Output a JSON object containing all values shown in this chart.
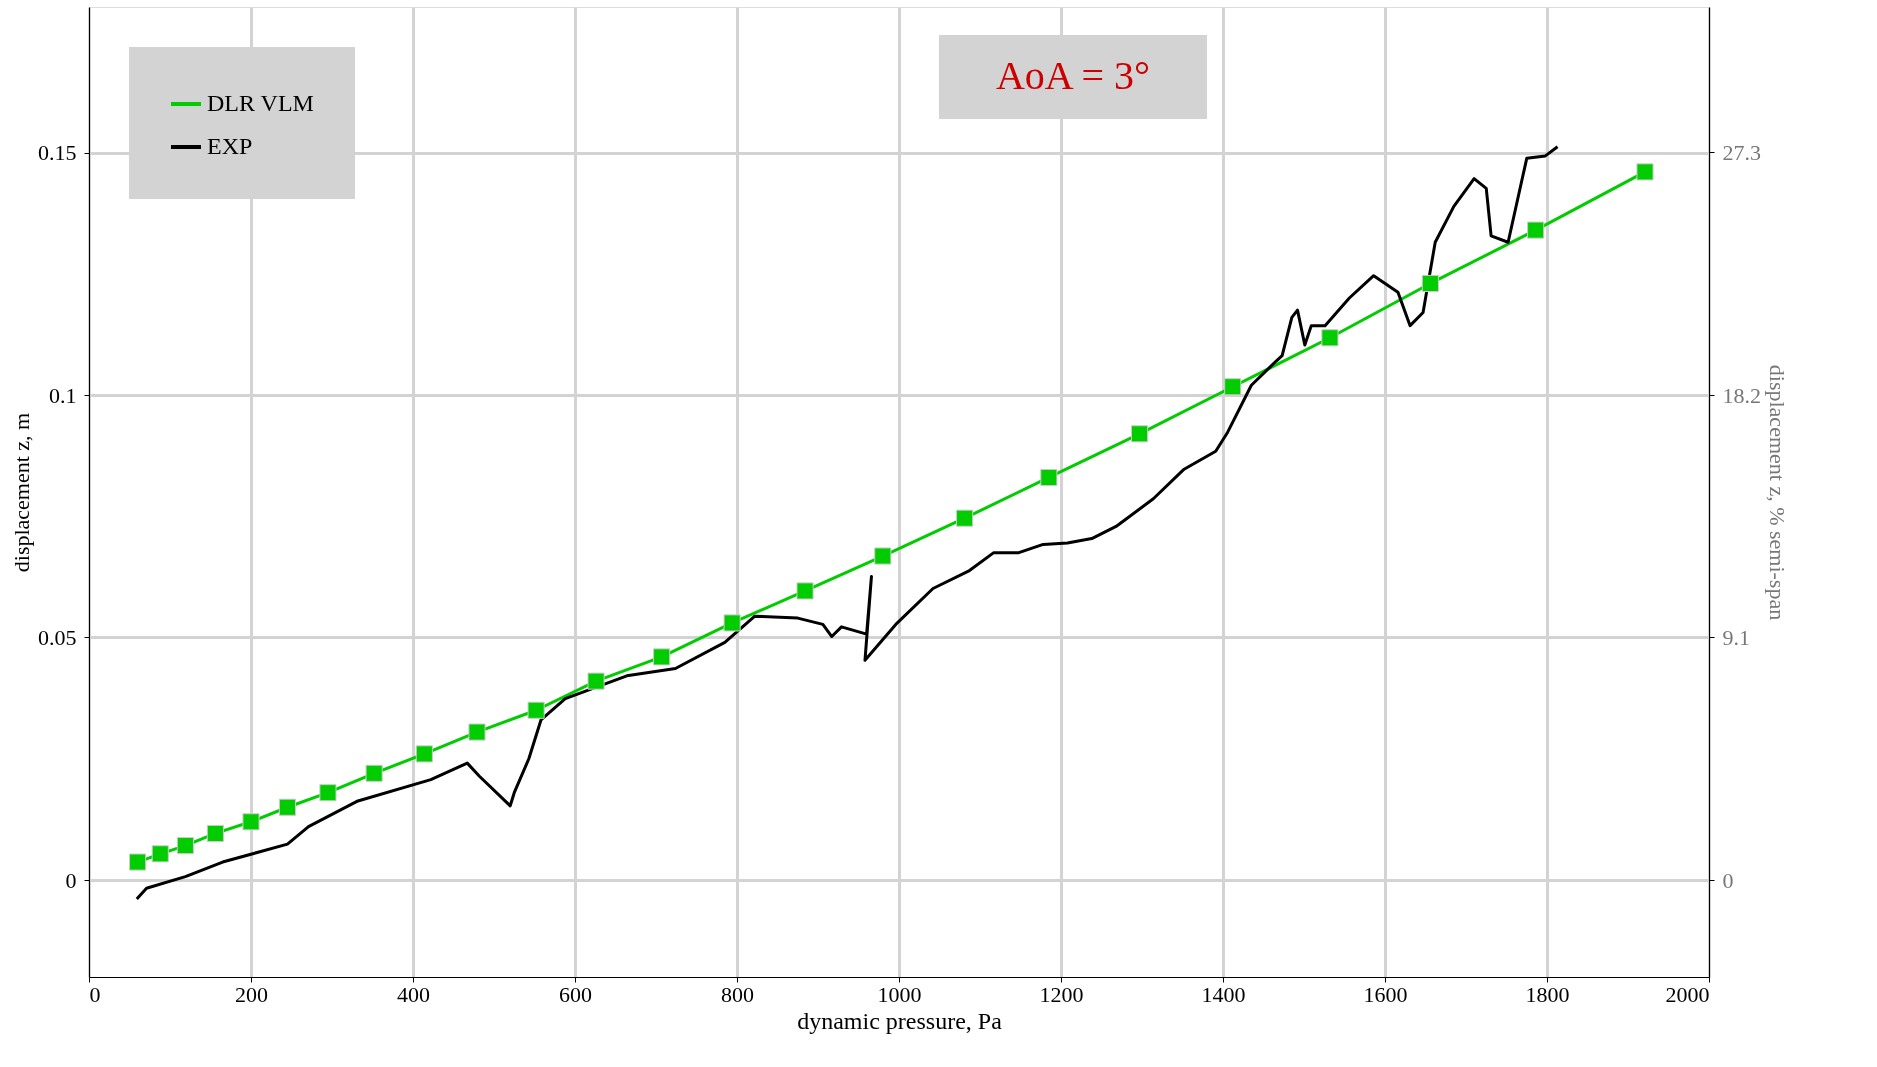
{
  "chart_data": {
    "type": "line",
    "xlabel": "dynamic pressure, Pa",
    "ylabel": "displacement z, m",
    "y2label": "displacement z, % semi-span",
    "annotations": [
      "AoA = 3°"
    ],
    "xlim": [
      0,
      2000
    ],
    "xticks": [
      0,
      200,
      400,
      600,
      800,
      1000,
      1200,
      1400,
      1600,
      1800,
      2000
    ],
    "ylim": [
      -0.02,
      0.18
    ],
    "yticks": [
      0,
      0.05,
      0.1,
      0.15
    ],
    "y2lim": [
      -3.64,
      32.76
    ],
    "y2ticks": [
      0,
      9.1,
      18.2,
      27.3
    ],
    "grid": true,
    "legend": "top left",
    "line_style": "solid",
    "series": [
      {
        "name": "DLR VLM",
        "color": "#00cc00",
        "marker": "square",
        "x": [
          60,
          88,
          119,
          156,
          200,
          245,
          295,
          352,
          414,
          479,
          552,
          626,
          707,
          794,
          884,
          980,
          1081,
          1185,
          1297,
          1412,
          1532,
          1656,
          1786,
          1921
        ],
        "values": [
          0.0037,
          0.0054,
          0.0071,
          0.0096,
          0.012,
          0.015,
          0.018,
          0.022,
          0.026,
          0.0305,
          0.035,
          0.041,
          0.046,
          0.053,
          0.0596,
          0.0668,
          0.0746,
          0.083,
          0.092,
          0.1017,
          0.1118,
          0.123,
          0.134,
          0.146
        ]
      },
      {
        "name": "EXP",
        "color": "#000000",
        "marker": "none",
        "x": [
          59,
          71,
          119,
          165,
          245,
          271,
          332,
          422,
          467,
          482,
          520,
          525,
          543,
          558,
          588,
          664,
          724,
          785,
          822,
          875,
          906,
          917,
          929,
          960,
          966,
          958,
          996,
          1042,
          1087,
          1117,
          1148,
          1178,
          1208,
          1238,
          1268,
          1314,
          1352,
          1391,
          1405,
          1435,
          1465,
          1473,
          1485,
          1492,
          1501,
          1509,
          1526,
          1556,
          1586,
          1616,
          1631,
          1647,
          1662,
          1685,
          1710,
          1725,
          1731,
          1752,
          1775,
          1798,
          1813
        ],
        "values": [
          -0.0039,
          -0.0017,
          0.0007,
          0.0037,
          0.0074,
          0.011,
          0.0163,
          0.0207,
          0.0241,
          0.0214,
          0.0153,
          0.018,
          0.025,
          0.033,
          0.0374,
          0.0421,
          0.0436,
          0.049,
          0.0544,
          0.054,
          0.0527,
          0.0502,
          0.0522,
          0.0507,
          0.0626,
          0.0453,
          0.0527,
          0.0601,
          0.0638,
          0.0675,
          0.0675,
          0.0692,
          0.0695,
          0.0704,
          0.0729,
          0.0786,
          0.0847,
          0.0884,
          0.0921,
          0.102,
          0.1069,
          0.1081,
          0.116,
          0.1175,
          0.1103,
          0.1143,
          0.1143,
          0.12,
          0.1246,
          0.1212,
          0.1143,
          0.117,
          0.1315,
          0.1389,
          0.1446,
          0.1426,
          0.1328,
          0.1315,
          0.1488,
          0.1493,
          0.1512
        ]
      }
    ]
  }
}
